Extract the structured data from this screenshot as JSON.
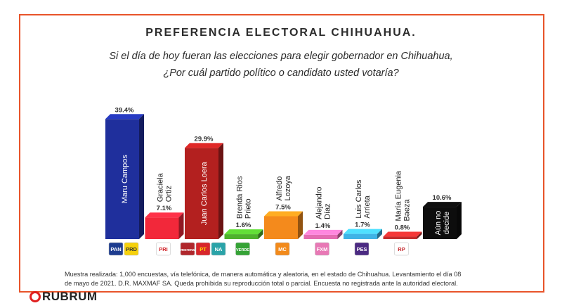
{
  "title": "PREFERENCIA ELECTORAL CHIHUAHUA.",
  "subtitle_line1": "Si el día de hoy fueran las elecciones para elegir gobernador en  Chihuahua,",
  "subtitle_line2": "¿Por cuál partido político  o candidato usted votaría?",
  "footnote_line1": "Muestra realizada: 1,000 encuestas, vía telefónica, de manera automática y aleatoria, en el estado de Chihuahua.  Levantamiento el día 08",
  "footnote_line2": "de mayo de 2021. D.R. MAXMAF SA. Queda prohibida su reproducción total o parcial. Encuesta no registrada ante la autoridad electoral.",
  "brand": "RUBRUM",
  "chart_data": {
    "type": "bar",
    "title": "",
    "xlabel": "",
    "ylabel": "",
    "ylim": [
      0,
      45
    ],
    "grid": false,
    "categories": [
      "Maru Campos",
      "Graciela Ortiz",
      "Juan Carlos Loera",
      "Brenda Rios Prieto",
      "Alfredo Lozoya",
      "Alejandro Díaz",
      "Luis Carlos Arrieta",
      "María Eugenia Baeza",
      "Aún no decide"
    ],
    "values": [
      39.4,
      7.1,
      29.9,
      1.6,
      7.5,
      1.4,
      1.7,
      0.8,
      10.6
    ],
    "value_labels": [
      "39.4%",
      "7.1%",
      "29.9%",
      "1.6%",
      "7.5%",
      "1.4%",
      "1.7%",
      "0.8%",
      "10.6%"
    ],
    "name_lines": [
      [
        "Maru Campos"
      ],
      [
        "Graciela",
        "Ortiz"
      ],
      [
        "Juan Carlos Loera"
      ],
      [
        "Brenda Rios",
        "Prieto"
      ],
      [
        "Alfredo",
        "Lozoya"
      ],
      [
        "Alejandro",
        "Díaz"
      ],
      [
        "Luis Carlos",
        "Arrieta"
      ],
      [
        "María Eugenia",
        "Baeza"
      ],
      [
        "Aún no",
        "decide"
      ]
    ],
    "label_inside": [
      true,
      false,
      true,
      false,
      false,
      false,
      false,
      false,
      true
    ],
    "colors": [
      "#1f2f9c",
      "#f2283a",
      "#b3201f",
      "#4fb22d",
      "#f48a1c",
      "#e46cb2",
      "#3fb3e6",
      "#c42d2d",
      "#0d0d0d"
    ],
    "party_logos": [
      [
        {
          "text": "PAN",
          "bg": "#1d3c8f",
          "fg": "#ffffff"
        },
        {
          "text": "PRD",
          "bg": "#f6d10b",
          "fg": "#333333"
        }
      ],
      [
        {
          "text": "PRI",
          "bg": "#ffffff",
          "fg": "#d11f26"
        }
      ],
      [
        {
          "text": "morena",
          "bg": "#b0272c",
          "fg": "#ffffff"
        },
        {
          "text": "PT",
          "bg": "#d8262b",
          "fg": "#ffe000"
        },
        {
          "text": "NA",
          "bg": "#2aa3a8",
          "fg": "#ffffff"
        }
      ],
      [
        {
          "text": "VERDE",
          "bg": "#35a336",
          "fg": "#ffffff"
        }
      ],
      [
        {
          "text": "MC",
          "bg": "#f28a1b",
          "fg": "#ffffff"
        }
      ],
      [
        {
          "text": "FXM",
          "bg": "#e878b5",
          "fg": "#ffffff"
        }
      ],
      [
        {
          "text": "PES",
          "bg": "#4b2a82",
          "fg": "#ffffff"
        }
      ],
      [
        {
          "text": "RP",
          "bg": "#ffffff",
          "fg": "#c4262b"
        }
      ],
      []
    ]
  }
}
